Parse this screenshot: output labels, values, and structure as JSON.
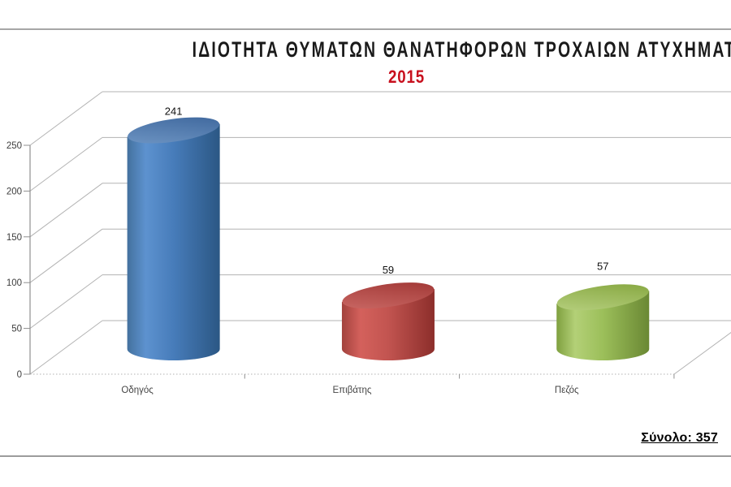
{
  "title": "ΙΔΙΟΤΗΤΑ ΘΥΜΑΤΩΝ ΘΑΝΑΤΗΦΟΡΩΝ ΤΡΟΧΑΙΩΝ ΑΤΥΧΗΜΑΤΩΝ",
  "subtitle": "2015",
  "total": "Σύνολο: 357",
  "colors": {
    "subtitle": "#c8101e",
    "title_text": "#1a1a1a",
    "grid": "#b3b3b3",
    "axis": "#8f8f8f",
    "tick_label": "#3d3d3d",
    "category_label": "#454545",
    "value_label": "#111111",
    "border_line": "#a6a6a6"
  },
  "chart_data": {
    "type": "bar",
    "variant": "3d-cylinder",
    "title": "ΙΔΙΟΤΗΤΑ ΘΥΜΑΤΩΝ ΘΑΝΑΤΗΦΟΡΩΝ ΤΡΟΧΑΙΩΝ ΑΤΥΧΗΜΑΤΩΝ",
    "subtitle": "2015",
    "categories": [
      "Οδηγός",
      "Επιβάτης",
      "Πεζός"
    ],
    "values": [
      241,
      59,
      57
    ],
    "total": 357,
    "yticks": [
      0,
      50,
      100,
      150,
      200,
      250
    ],
    "ylim": [
      0,
      250
    ],
    "grid": true,
    "legend": false,
    "series_colors": [
      {
        "name": "blue",
        "body": [
          "#44719e",
          "#5d92cf",
          "#477cba",
          "#2b5784"
        ],
        "top": [
          "#7097c5",
          "#3c659b"
        ]
      },
      {
        "name": "red",
        "body": [
          "#a2423d",
          "#d4615c",
          "#c25450",
          "#8c2e2b"
        ],
        "top": [
          "#cc6b67",
          "#9e3432"
        ]
      },
      {
        "name": "green",
        "body": [
          "#7fa03f",
          "#b3d077",
          "#9cbf5a",
          "#6a8834"
        ],
        "top": [
          "#b9d282",
          "#83a43c"
        ]
      }
    ]
  }
}
